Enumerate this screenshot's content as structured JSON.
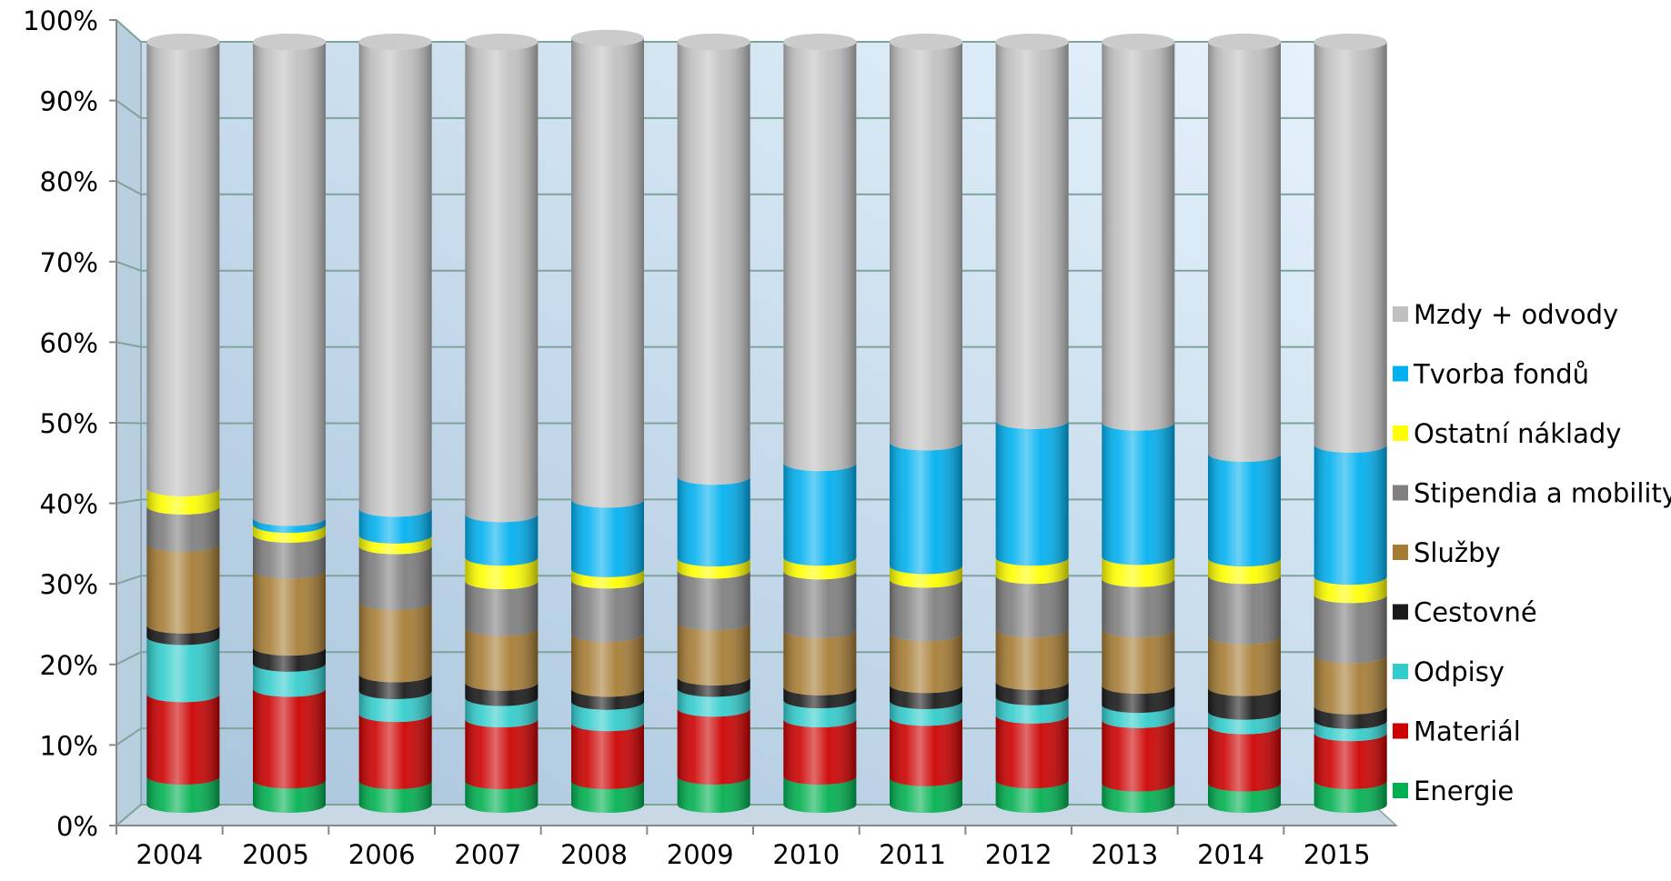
{
  "chart_data": {
    "type": "bar",
    "stacked": "percent",
    "style": "3d-cylinder",
    "categories": [
      "2004",
      "2005",
      "2006",
      "2007",
      "2008",
      "2009",
      "2010",
      "2011",
      "2012",
      "2013",
      "2014",
      "2015"
    ],
    "y_ticks": [
      "0%",
      "10%",
      "20%",
      "30%",
      "40%",
      "50%",
      "60%",
      "70%",
      "80%",
      "90%",
      "100%"
    ],
    "ylim": [
      0,
      100
    ],
    "grid": true,
    "legend_position": "right",
    "series": [
      {
        "name": "Energie",
        "color": "#00b050",
        "values": [
          3.7,
          3.2,
          3.1,
          3.1,
          3.1,
          3.7,
          3.7,
          3.5,
          3.2,
          2.8,
          2.8,
          3.1
        ]
      },
      {
        "name": "Materiál",
        "color": "#cc0000",
        "values": [
          10.8,
          12.0,
          8.8,
          8.1,
          7.6,
          8.9,
          7.5,
          7.9,
          8.5,
          8.3,
          7.5,
          6.3
        ]
      },
      {
        "name": "Odpisy",
        "color": "#33cccc",
        "values": [
          7.5,
          3.3,
          3.0,
          2.8,
          2.8,
          2.6,
          2.5,
          2.2,
          2.4,
          2.0,
          1.9,
          1.6
        ]
      },
      {
        "name": "Cestovné",
        "color": "#1a1a1a",
        "values": [
          1.5,
          2.1,
          2.2,
          2.0,
          1.7,
          1.5,
          1.7,
          2.1,
          2.0,
          2.5,
          3.1,
          1.9
        ]
      },
      {
        "name": "Služby",
        "color": "#a67c34",
        "values": [
          10.7,
          10.1,
          9.5,
          7.2,
          7.2,
          7.2,
          7.5,
          6.8,
          6.9,
          7.4,
          6.8,
          6.7
        ]
      },
      {
        "name": "Stipendia a mobility",
        "color": "#7f7f7f",
        "values": [
          4.9,
          4.7,
          7.3,
          6.1,
          7.0,
          6.8,
          7.7,
          7.0,
          7.0,
          6.6,
          7.9,
          7.9
        ]
      },
      {
        "name": "Ostatní náklady",
        "color": "#ffff00",
        "values": [
          2.4,
          1.3,
          1.4,
          3.1,
          1.5,
          1.6,
          1.8,
          1.8,
          2.4,
          2.9,
          2.3,
          2.4
        ]
      },
      {
        "name": "Tvorba fondů",
        "color": "#00b0f0",
        "values": [
          0.0,
          0.9,
          3.5,
          5.7,
          9.1,
          10.7,
          12.4,
          16.2,
          17.9,
          17.6,
          13.7,
          17.3
        ]
      },
      {
        "name": "Mzdy + odvody",
        "color": "#c0c0c0",
        "values": [
          58.5,
          62.4,
          61.2,
          61.9,
          60.5,
          57.0,
          55.2,
          52.5,
          49.7,
          49.9,
          54.0,
          52.8
        ]
      }
    ]
  }
}
